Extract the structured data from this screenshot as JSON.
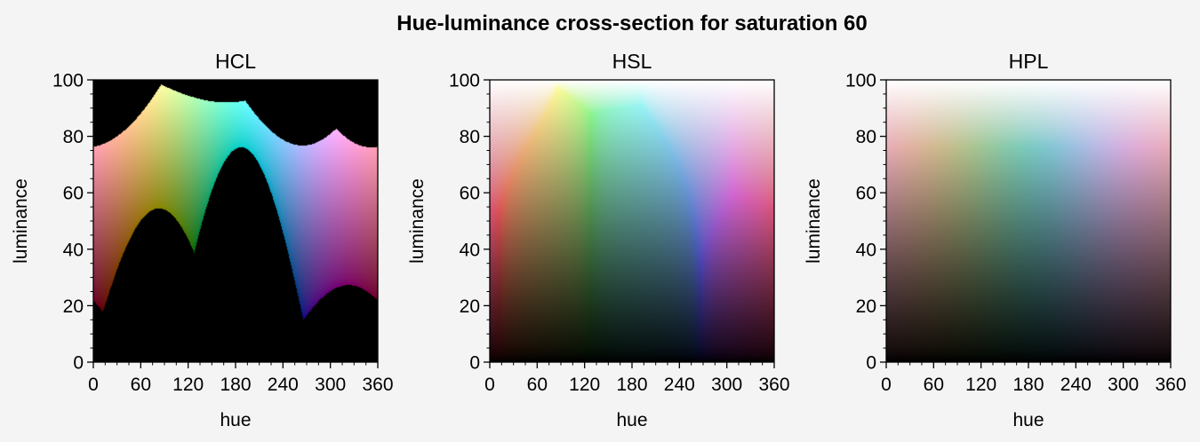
{
  "figure": {
    "title": "Hue-luminance cross-section for saturation 60",
    "background": "#f4f4f4"
  },
  "chart_data": [
    {
      "type": "heatmap",
      "title": "HCL",
      "colorspace": "hcl",
      "saturation": 60,
      "xlabel": "hue",
      "ylabel": "luminance",
      "xlim": [
        0,
        360
      ],
      "ylim": [
        0,
        100
      ],
      "xticks": [
        0,
        60,
        120,
        180,
        240,
        300,
        360
      ],
      "yticks": [
        0,
        20,
        40,
        60,
        80,
        100
      ],
      "grid": false
    },
    {
      "type": "heatmap",
      "title": "HSL",
      "colorspace": "hsluv",
      "saturation": 60,
      "xlabel": "hue",
      "ylabel": "luminance",
      "xlim": [
        0,
        360
      ],
      "ylim": [
        0,
        100
      ],
      "xticks": [
        0,
        60,
        120,
        180,
        240,
        300,
        360
      ],
      "yticks": [
        0,
        20,
        40,
        60,
        80,
        100
      ],
      "grid": false
    },
    {
      "type": "heatmap",
      "title": "HPL",
      "colorspace": "hpluv",
      "saturation": 60,
      "xlabel": "hue",
      "ylabel": "luminance",
      "xlim": [
        0,
        360
      ],
      "ylim": [
        0,
        100
      ],
      "xticks": [
        0,
        60,
        120,
        180,
        240,
        300,
        360
      ],
      "yticks": [
        0,
        20,
        40,
        60,
        80,
        100
      ],
      "grid": false
    }
  ]
}
